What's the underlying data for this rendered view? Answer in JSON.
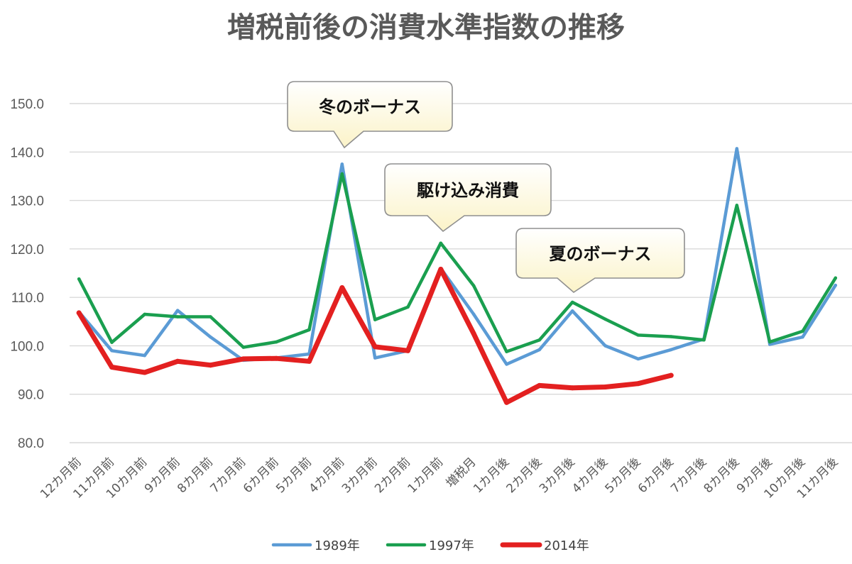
{
  "chart_data": {
    "type": "line",
    "title": "増税前後の消費水準指数の推移",
    "xlabel": "",
    "ylabel": "",
    "ylim": [
      80,
      150
    ],
    "yticks": [
      "80.0",
      "90.0",
      "100.0",
      "110.0",
      "120.0",
      "130.0",
      "140.0",
      "150.0"
    ],
    "grid": true,
    "legend_position": "bottom",
    "categories": [
      "12カ月前",
      "11カ月前",
      "10カ月前",
      "9カ月前",
      "8カ月前",
      "7カ月前",
      "6カ月前",
      "5カ月前",
      "4カ月前",
      "3カ月前",
      "2カ月前",
      "1カ月前",
      "増税月",
      "1カ月後",
      "2カ月後",
      "3カ月後",
      "4カ月後",
      "5カ月後",
      "6カ月後",
      "7カ月後",
      "8カ月後",
      "9カ月後",
      "10カ月後",
      "11カ月後"
    ],
    "series": [
      {
        "name": "1989年",
        "color": "#5b9bd5",
        "values": [
          107.0,
          99.0,
          98.0,
          107.3,
          101.8,
          97.0,
          97.5,
          98.3,
          137.5,
          97.5,
          99.0,
          116.0,
          106.5,
          96.2,
          99.2,
          107.2,
          100.0,
          97.3,
          99.2,
          101.4,
          140.7,
          100.3,
          101.8,
          112.5
        ]
      },
      {
        "name": "1997年",
        "color": "#1a9f4f",
        "values": [
          113.8,
          100.7,
          106.5,
          106.0,
          106.0,
          99.7,
          100.8,
          103.3,
          135.5,
          105.4,
          108.0,
          121.2,
          112.4,
          98.8,
          101.2,
          109.0,
          105.5,
          102.2,
          101.9,
          101.2,
          129.0,
          100.8,
          103.0,
          114.0
        ]
      },
      {
        "name": "2014年",
        "color": "#e32020",
        "values": [
          106.8,
          95.6,
          94.5,
          96.8,
          96.0,
          97.3,
          97.4,
          96.8,
          112.0,
          99.8,
          99.0,
          115.8,
          102.5,
          88.3,
          91.8,
          91.3,
          91.5,
          92.2,
          93.9,
          null,
          null,
          null,
          null,
          null
        ]
      }
    ],
    "annotations": [
      {
        "text": "冬のボーナス",
        "category": "4カ月前"
      },
      {
        "text": "駆け込み消費",
        "category": "1カ月前"
      },
      {
        "text": "夏のボーナス",
        "category": "3カ月後"
      }
    ]
  }
}
